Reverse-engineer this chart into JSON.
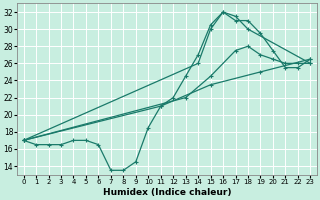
{
  "xlabel": "Humidex (Indice chaleur)",
  "xlim": [
    -0.5,
    23.5
  ],
  "ylim": [
    13,
    33
  ],
  "xticks": [
    0,
    1,
    2,
    3,
    4,
    5,
    6,
    7,
    8,
    9,
    10,
    11,
    12,
    13,
    14,
    15,
    16,
    17,
    18,
    19,
    20,
    21,
    22,
    23
  ],
  "yticks": [
    14,
    16,
    18,
    20,
    22,
    24,
    26,
    28,
    30,
    32
  ],
  "bg_color": "#c8eee0",
  "line_color": "#1a7a6a",
  "lines": [
    {
      "x": [
        0,
        1,
        2,
        3,
        4,
        5,
        6,
        7,
        8,
        9,
        10,
        11,
        12,
        13,
        14,
        15,
        16,
        17,
        18,
        19,
        20,
        21,
        22,
        23
      ],
      "y": [
        17,
        16.5,
        16.5,
        16.5,
        17,
        17,
        16.5,
        13.5,
        13.5,
        14.5,
        18.5,
        21,
        22,
        24.5,
        27,
        30.5,
        32,
        31,
        31,
        29.5,
        27.5,
        25.5,
        25.5,
        26.5
      ]
    },
    {
      "x": [
        0,
        11,
        15,
        19,
        23
      ],
      "y": [
        17,
        21,
        23.5,
        25,
        26.5
      ]
    },
    {
      "x": [
        0,
        13,
        15,
        17,
        18,
        19,
        20,
        21,
        22,
        23
      ],
      "y": [
        17,
        22,
        24.5,
        27.5,
        28,
        27,
        26.5,
        26,
        26,
        26
      ]
    },
    {
      "x": [
        0,
        14,
        15,
        16,
        17,
        18,
        23
      ],
      "y": [
        17,
        26,
        30,
        32,
        31.5,
        30,
        26
      ]
    }
  ]
}
